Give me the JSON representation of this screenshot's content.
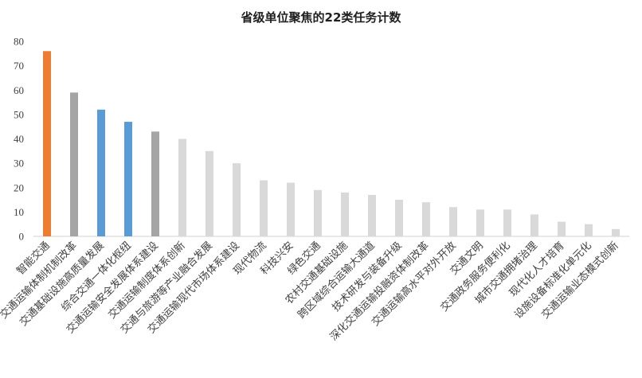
{
  "chart_data": {
    "type": "bar",
    "title": "省级单位聚焦的22类任务计数",
    "xlabel": "",
    "ylabel": "",
    "ylim": [
      0,
      80
    ],
    "yticks": [
      0,
      10,
      20,
      30,
      40,
      50,
      60,
      70,
      80
    ],
    "grid": false,
    "legend": "none",
    "categories": [
      "智能交通",
      "交通运输体制机制改革",
      "交通基础设施高质量发展",
      "综合交通一体化枢纽",
      "交通运输安全发展体系建设",
      "交通运输制度体系创新",
      "交通与旅游等产业融合发展",
      "交通运输现代市场体系建设",
      "现代物流",
      "科技兴安",
      "绿色交通",
      "农村交通基础设施",
      "跨区域综合运输大通道",
      "技术研发与装备升级",
      "深化交通运输投融资体制改革",
      "交通运输高水平对外开放",
      "交通文明",
      "交通政务服务便利化",
      "城市交通拥堵治理",
      "现代化人才培育",
      "设施设备标准化单元化",
      "交通运输业态模式创新"
    ],
    "values": [
      76,
      59,
      52,
      47,
      43,
      40,
      35,
      30,
      23,
      22,
      19,
      18,
      17,
      15,
      14,
      12,
      11,
      11,
      9,
      6,
      5,
      3
    ],
    "bar_colors": [
      "#ED7D31",
      "#A5A5A5",
      "#5B9BD5",
      "#5B9BD5",
      "#A5A5A5",
      "#D9D9D9",
      "#D9D9D9",
      "#D9D9D9",
      "#D9D9D9",
      "#D9D9D9",
      "#D9D9D9",
      "#D9D9D9",
      "#D9D9D9",
      "#D9D9D9",
      "#D9D9D9",
      "#D9D9D9",
      "#D9D9D9",
      "#D9D9D9",
      "#D9D9D9",
      "#D9D9D9",
      "#D9D9D9",
      "#D9D9D9"
    ]
  }
}
